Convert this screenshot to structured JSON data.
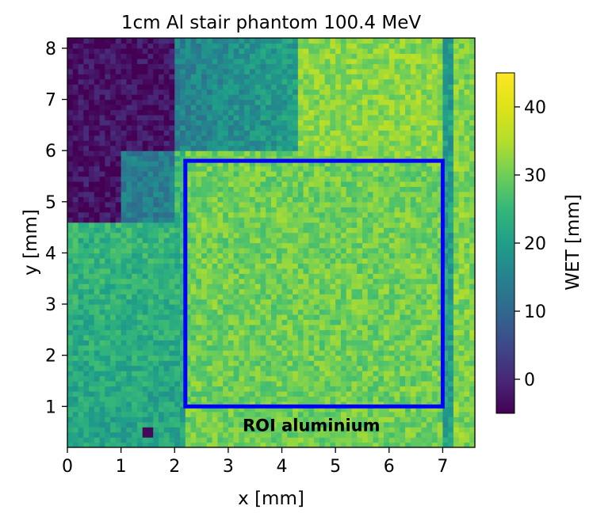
{
  "chart_data": {
    "type": "heatmap",
    "title": "1cm Al stair phantom 100.4 MeV",
    "xlabel": "x [mm]",
    "ylabel": "y [mm]",
    "colorbar_label": "WET [mm]",
    "colormap": "viridis",
    "xlim": [
      0,
      7.6
    ],
    "ylim": [
      0.2,
      8.2
    ],
    "clim": [
      -5,
      45
    ],
    "x_ticks": [
      0,
      1,
      2,
      3,
      4,
      5,
      6,
      7
    ],
    "y_ticks": [
      1,
      2,
      3,
      4,
      5,
      6,
      7,
      8
    ],
    "colorbar_ticks": [
      0,
      10,
      20,
      30,
      40
    ],
    "grid": false,
    "approx_regions": [
      {
        "desc": "thin region top-left",
        "x": [
          0,
          2.0
        ],
        "y": [
          4.6,
          8.2
        ],
        "wet": -3
      },
      {
        "desc": "medium step top-middle",
        "x": [
          0.9,
          4.3
        ],
        "y": [
          6.0,
          8.2
        ],
        "wet": 12
      },
      {
        "desc": "left lower area",
        "x": [
          0,
          2.2
        ],
        "y": [
          0.2,
          4.6
        ],
        "wet": 22
      },
      {
        "desc": "top right area",
        "x": [
          4.3,
          7.0
        ],
        "y": [
          5.8,
          8.2
        ],
        "wet": 32
      },
      {
        "desc": "central plateau",
        "x": [
          2.2,
          7.0
        ],
        "y": [
          1.0,
          5.8
        ],
        "wet": 30
      }
    ],
    "roi": {
      "label": "ROI aluminium",
      "x": [
        2.2,
        7.0
      ],
      "y": [
        1.0,
        5.8
      ],
      "color": "#0000ff"
    }
  }
}
